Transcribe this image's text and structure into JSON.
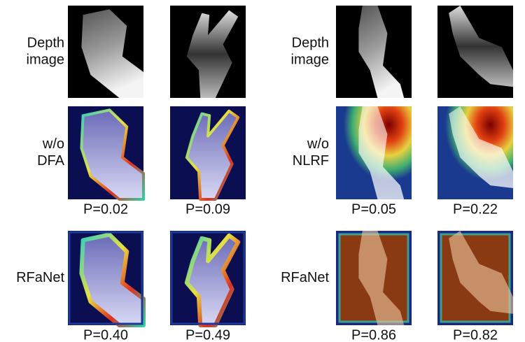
{
  "panels": [
    {
      "rows": [
        {
          "label": [
            "Depth",
            "image"
          ]
        },
        {
          "label": [
            "w/o",
            "DFA"
          ],
          "captions": [
            "P=0.02",
            "P=0.09"
          ]
        },
        {
          "label": [
            "RFaNet"
          ],
          "captions": [
            "P=0.40",
            "P=0.49"
          ]
        }
      ]
    },
    {
      "rows": [
        {
          "label": [
            "Depth",
            "image"
          ]
        },
        {
          "label": [
            "w/o",
            "NLRF"
          ],
          "captions": [
            "P=0.05",
            "P=0.22"
          ]
        },
        {
          "label": [
            "RFaNet"
          ],
          "captions": [
            "P=0.86",
            "P=0.82"
          ]
        }
      ]
    }
  ]
}
